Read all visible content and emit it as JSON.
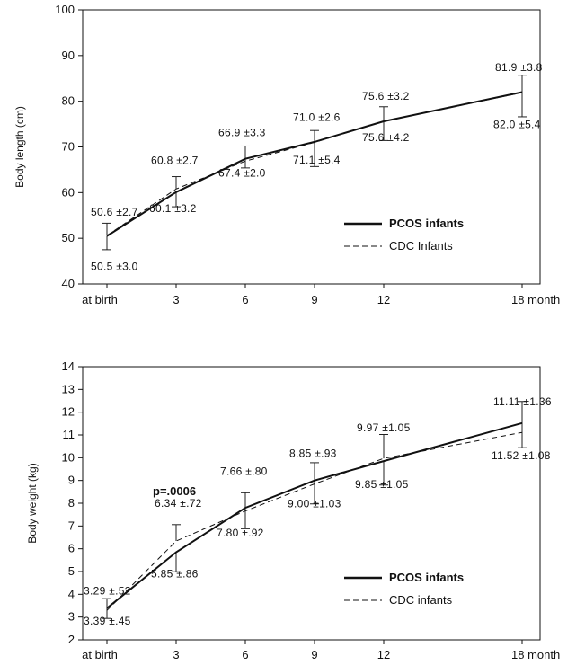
{
  "chart_data": [
    {
      "type": "line",
      "ylabel": "Body length (cm)",
      "ylim": [
        40,
        100
      ],
      "yticks": [
        "40",
        "50",
        "60",
        "70",
        "80",
        "90",
        "100"
      ],
      "x": [
        0,
        3,
        6,
        9,
        12,
        18
      ],
      "xticks": [
        "at birth",
        "3",
        "6",
        "9",
        "12",
        "18 month"
      ],
      "series": [
        {
          "name": "PCOS infants",
          "style": "solid",
          "values": [
            50.5,
            60.1,
            67.4,
            71.1,
            75.6,
            82.0
          ],
          "sd": [
            3.0,
            3.2,
            2.0,
            5.4,
            4.2,
            5.4
          ],
          "labels": [
            "50.5 ±3.0",
            "60.1 ±3.2",
            "67.4 ±2.0",
            "71.1 ±5.4",
            "75.6 ±4.2",
            "82.0 ±5.4"
          ]
        },
        {
          "name": "CDC Infants",
          "style": "dashed",
          "values": [
            50.6,
            60.8,
            66.9,
            71.0,
            75.6,
            81.9
          ],
          "sd": [
            2.7,
            2.7,
            3.3,
            2.6,
            3.2,
            3.8
          ],
          "labels": [
            "50.6 ±2.7",
            "60.8 ±2.7",
            "66.9 ±3.3",
            "71.0 ±2.6",
            "75.6 ±3.2",
            "81.9 ±3.8"
          ]
        }
      ],
      "annotations": [],
      "legend": "bottom-right",
      "grid": false
    },
    {
      "type": "line",
      "ylabel": "Body weight (kg)",
      "ylim": [
        2,
        14
      ],
      "yticks": [
        "2",
        "3",
        "4",
        "5",
        "6",
        "7",
        "8",
        "9",
        "10",
        "11",
        "12",
        "13",
        "14"
      ],
      "x": [
        0,
        3,
        6,
        9,
        12,
        18
      ],
      "xticks": [
        "at birth",
        "3",
        "6",
        "9",
        "12",
        "18 month"
      ],
      "series": [
        {
          "name": "PCOS infants",
          "style": "solid",
          "values": [
            3.39,
            5.85,
            7.8,
            9.0,
            9.85,
            11.52
          ],
          "sd": [
            0.45,
            0.86,
            0.92,
            1.03,
            1.05,
            1.08
          ],
          "labels": [
            "3.39 ±.45",
            "5.85 ±.86",
            "7.80 ±.92",
            "9.00 ±1.03",
            "9.85 ±1.05",
            "11.52 ±1.08"
          ]
        },
        {
          "name": "CDC infants",
          "style": "dashed",
          "values": [
            3.29,
            6.34,
            7.66,
            8.85,
            9.97,
            11.11
          ],
          "sd": [
            0.52,
            0.72,
            0.8,
            0.93,
            1.05,
            1.36
          ],
          "labels": [
            "3.29 ±.52",
            "6.34 ±.72",
            "7.66 ±.80",
            "8.85 ±.93",
            "9.97 ±1.05",
            "11.11 ±1.36"
          ]
        }
      ],
      "annotations": [
        "p=.0006"
      ],
      "legend": "bottom-right",
      "grid": false
    }
  ]
}
